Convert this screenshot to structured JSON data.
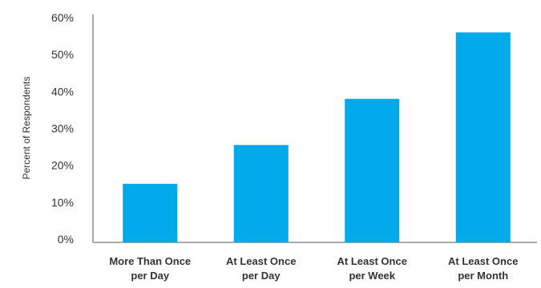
{
  "chart_data": {
    "type": "bar",
    "title": "",
    "xlabel": "",
    "ylabel": "Percent of Respondents",
    "categories": [
      [
        "More Than Once",
        "per Day"
      ],
      [
        "At Least Once",
        "per Day"
      ],
      [
        "At Least Once",
        "per Week"
      ],
      [
        "At Least Once",
        "per Month"
      ]
    ],
    "values": [
      15,
      25.5,
      38,
      56
    ],
    "ylim": [
      0,
      60
    ],
    "yticks": [
      0,
      10,
      20,
      30,
      40,
      50,
      60
    ],
    "ytick_labels": [
      "0%",
      "10%",
      "20%",
      "30%",
      "40%",
      "50%",
      "60%"
    ],
    "bar_color": "#00a9e8",
    "grid": false,
    "legend": "none"
  }
}
